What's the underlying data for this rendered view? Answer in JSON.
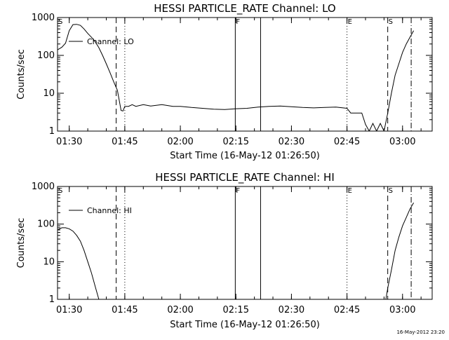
{
  "footer": {
    "timestamp": "16-May-2012 23:20"
  },
  "chart_data": [
    {
      "type": "line",
      "title": "HESSI PARTICLE_RATE Channel: LO",
      "xlabel": "Start Time (16-May-12 01:26:50)",
      "ylabel": "Counts/sec",
      "yscale": "log",
      "ylim": [
        1,
        1000
      ],
      "xlim": [
        "01:26:50",
        "03:08:00"
      ],
      "x_ticks": [
        "01:30",
        "01:45",
        "02:00",
        "02:15",
        "02:30",
        "02:45",
        "03:00"
      ],
      "y_ticks": [
        "1",
        "10",
        "100",
        "1000"
      ],
      "legend": {
        "label": "Channel: LO",
        "position": "top-left"
      },
      "markers": [
        {
          "time": "01:26:50",
          "label": "S",
          "style": "none"
        },
        {
          "time": "01:42:40",
          "label": "",
          "style": "dashed"
        },
        {
          "time": "01:45:00",
          "label": "",
          "style": "dotted"
        },
        {
          "time": "02:14:50",
          "label": "F",
          "style": "solid"
        },
        {
          "time": "02:21:40",
          "label": "",
          "style": "solid"
        },
        {
          "time": "02:45:00",
          "label": "E",
          "style": "dotted"
        },
        {
          "time": "02:56:00",
          "label": "S",
          "style": "dashed"
        },
        {
          "time": "03:02:20",
          "label": "",
          "style": "dashdot"
        }
      ],
      "series": [
        {
          "name": "Channel: LO",
          "points": [
            [
              "01:26:50",
              140
            ],
            [
              "01:28:00",
              165
            ],
            [
              "01:29:00",
              210
            ],
            [
              "01:30:00",
              450
            ],
            [
              "01:31:00",
              650
            ],
            [
              "01:32:00",
              660
            ],
            [
              "01:33:00",
              620
            ],
            [
              "01:34:00",
              500
            ],
            [
              "01:35:00",
              380
            ],
            [
              "01:36:00",
              300
            ],
            [
              "01:37:00",
              230
            ],
            [
              "01:38:00",
              160
            ],
            [
              "01:39:00",
              100
            ],
            [
              "01:40:00",
              60
            ],
            [
              "01:41:00",
              35
            ],
            [
              "01:42:00",
              20
            ],
            [
              "01:43:00",
              12
            ],
            [
              "01:44:00",
              3.5
            ],
            [
              "01:44:30",
              3.4
            ],
            [
              "01:45:00",
              4.5
            ],
            [
              "01:46:00",
              4.5
            ],
            [
              "01:47:00",
              5
            ],
            [
              "01:48:00",
              4.5
            ],
            [
              "01:50:00",
              5
            ],
            [
              "01:52:00",
              4.6
            ],
            [
              "01:55:00",
              5
            ],
            [
              "01:58:00",
              4.5
            ],
            [
              "02:00:00",
              4.5
            ],
            [
              "02:03:00",
              4.2
            ],
            [
              "02:06:00",
              4.0
            ],
            [
              "02:09:00",
              3.8
            ],
            [
              "02:12:00",
              3.7
            ],
            [
              "02:15:00",
              3.9
            ],
            [
              "02:18:00",
              4.0
            ],
            [
              "02:21:00",
              4.3
            ],
            [
              "02:24:00",
              4.5
            ],
            [
              "02:27:00",
              4.6
            ],
            [
              "02:30:00",
              4.4
            ],
            [
              "02:33:00",
              4.2
            ],
            [
              "02:36:00",
              4.1
            ],
            [
              "02:39:00",
              4.2
            ],
            [
              "02:42:00",
              4.3
            ],
            [
              "02:45:00",
              4.0
            ],
            [
              "02:46:00",
              3.0
            ],
            [
              "02:48:00",
              3.0
            ],
            [
              "02:49:00",
              3.0
            ],
            [
              "02:50:00",
              1.5
            ],
            [
              "02:51:00",
              1.0
            ],
            [
              "02:52:00",
              1.6
            ],
            [
              "02:53:00",
              1.0
            ],
            [
              "02:54:00",
              1.6
            ],
            [
              "02:55:00",
              1.0
            ],
            [
              "02:56:00",
              3
            ],
            [
              "02:57:00",
              10
            ],
            [
              "02:58:00",
              30
            ],
            [
              "02:59:00",
              60
            ],
            [
              "03:00:00",
              120
            ],
            [
              "03:01:00",
              200
            ],
            [
              "03:02:00",
              300
            ],
            [
              "03:03:00",
              450
            ]
          ]
        }
      ]
    },
    {
      "type": "line",
      "title": "HESSI PARTICLE_RATE Channel: HI",
      "xlabel": "Start Time (16-May-12 01:26:50)",
      "ylabel": "Counts/sec",
      "yscale": "log",
      "ylim": [
        1,
        1000
      ],
      "xlim": [
        "01:26:50",
        "03:08:00"
      ],
      "x_ticks": [
        "01:30",
        "01:45",
        "02:00",
        "02:15",
        "02:30",
        "02:45",
        "03:00"
      ],
      "y_ticks": [
        "1",
        "10",
        "100",
        "1000"
      ],
      "legend": {
        "label": "Channel: HI",
        "position": "top-left"
      },
      "markers": [
        {
          "time": "01:26:50",
          "label": "S",
          "style": "none"
        },
        {
          "time": "01:42:40",
          "label": "",
          "style": "dashed"
        },
        {
          "time": "01:45:00",
          "label": "",
          "style": "dotted"
        },
        {
          "time": "02:14:50",
          "label": "F",
          "style": "solid"
        },
        {
          "time": "02:21:40",
          "label": "",
          "style": "solid"
        },
        {
          "time": "02:45:00",
          "label": "E",
          "style": "dotted"
        },
        {
          "time": "02:56:00",
          "label": "S",
          "style": "dashed"
        },
        {
          "time": "03:02:20",
          "label": "",
          "style": "dashdot"
        }
      ],
      "series": [
        {
          "name": "Channel: HI",
          "points": [
            [
              "01:26:50",
              70
            ],
            [
              "01:28:00",
              80
            ],
            [
              "01:29:00",
              80
            ],
            [
              "01:30:00",
              75
            ],
            [
              "01:31:00",
              65
            ],
            [
              "01:32:00",
              50
            ],
            [
              "01:33:00",
              35
            ],
            [
              "01:34:00",
              20
            ],
            [
              "01:35:00",
              10
            ],
            [
              "01:36:00",
              5
            ],
            [
              "01:37:00",
              2.2
            ],
            [
              "01:38:00",
              1.0
            ],
            [
              "02:55:30",
              1.0
            ],
            [
              "02:56:00",
              2
            ],
            [
              "02:57:00",
              6
            ],
            [
              "02:58:00",
              20
            ],
            [
              "02:59:00",
              45
            ],
            [
              "03:00:00",
              90
            ],
            [
              "03:01:00",
              150
            ],
            [
              "03:02:00",
              250
            ],
            [
              "03:03:00",
              370
            ]
          ]
        }
      ]
    }
  ]
}
